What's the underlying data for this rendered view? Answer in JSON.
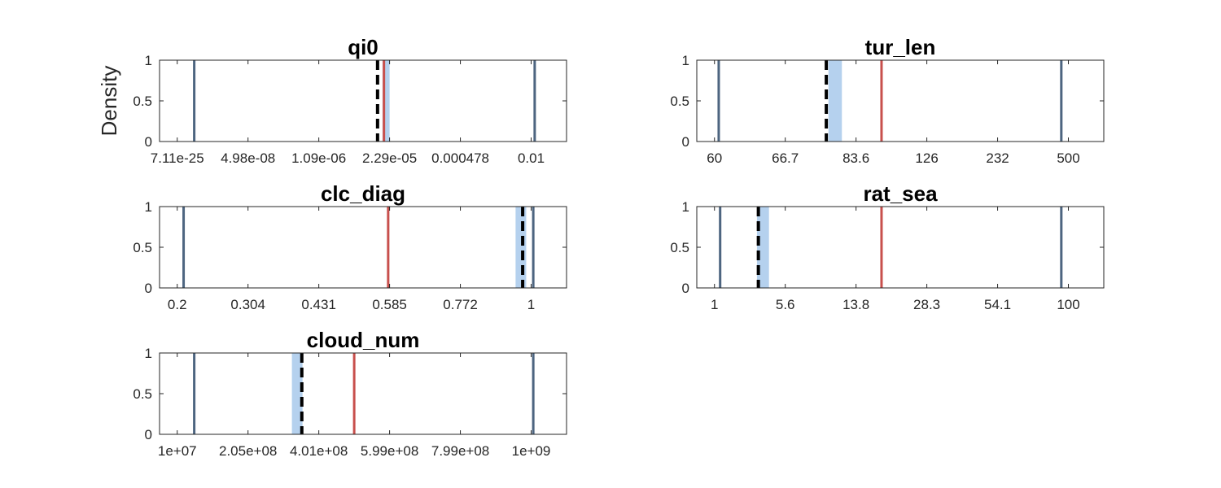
{
  "figure": {
    "ylabel": "Density"
  },
  "colors": {
    "bound_line": "#4d6580",
    "red_line": "#c8504d",
    "band": "#b5d1ee",
    "dashed_line": "#000000",
    "axis": "#262626"
  },
  "chart_data": [
    {
      "type": "line",
      "title": "qi0",
      "ylabel": "Density",
      "ylim": [
        0,
        1
      ],
      "yticks": [
        "0",
        "0.5",
        "1"
      ],
      "xlim": [
        -0.25,
        5.5
      ],
      "xticks": [
        "7.11e-25",
        "4.98e-08",
        "1.09e-06",
        "2.29e-05",
        "0.000478",
        "0.01"
      ],
      "grid": false,
      "legend": "none",
      "markers": {
        "bounds": [
          0.24,
          5.05
        ],
        "red": 2.92,
        "band": [
          2.9,
          3.0
        ],
        "dashed": 2.83
      }
    },
    {
      "type": "line",
      "title": "tur_len",
      "ylabel": "",
      "ylim": [
        0,
        1
      ],
      "yticks": [
        "0",
        "0.5",
        "1"
      ],
      "xlim": [
        -0.25,
        5.5
      ],
      "xticks": [
        "60",
        "66.7",
        "83.6",
        "126",
        "232",
        "500"
      ],
      "grid": false,
      "legend": "none",
      "markers": {
        "bounds": [
          0.06,
          4.9
        ],
        "red": 2.36,
        "band": [
          1.61,
          1.8
        ],
        "dashed": 1.58
      }
    },
    {
      "type": "line",
      "title": "clc_diag",
      "ylabel": "",
      "ylim": [
        0,
        1
      ],
      "yticks": [
        "0",
        "0.5",
        "1"
      ],
      "xlim": [
        -0.25,
        5.5
      ],
      "xticks": [
        "0.2",
        "0.304",
        "0.431",
        "0.585",
        "0.772",
        "1"
      ],
      "grid": false,
      "legend": "none",
      "markers": {
        "bounds": [
          0.09,
          5.03
        ],
        "red": 2.98,
        "band": [
          4.78,
          4.93
        ],
        "dashed": 4.88
      }
    },
    {
      "type": "line",
      "title": "rat_sea",
      "ylabel": "",
      "ylim": [
        0,
        1
      ],
      "yticks": [
        "0",
        "0.5",
        "1"
      ],
      "xlim": [
        -0.25,
        5.5
      ],
      "xticks": [
        "1",
        "5.6",
        "13.8",
        "28.3",
        "54.1",
        "100"
      ],
      "grid": false,
      "legend": "none",
      "markers": {
        "bounds": [
          0.08,
          4.9
        ],
        "red": 2.36,
        "band": [
          0.6,
          0.77
        ],
        "dashed": 0.62
      }
    },
    {
      "type": "line",
      "title": "cloud_num",
      "ylabel": "",
      "ylim": [
        0,
        1
      ],
      "yticks": [
        "0",
        "0.5",
        "1"
      ],
      "xlim": [
        -0.25,
        5.5
      ],
      "xticks": [
        "1e+07",
        "2.05e+08",
        "4.01e+08",
        "5.99e+08",
        "7.99e+08",
        "1e+09"
      ],
      "grid": false,
      "legend": "none",
      "markers": {
        "bounds": [
          0.24,
          5.03
        ],
        "red": 2.5,
        "band": [
          1.62,
          1.77
        ],
        "dashed": 1.76
      }
    }
  ]
}
